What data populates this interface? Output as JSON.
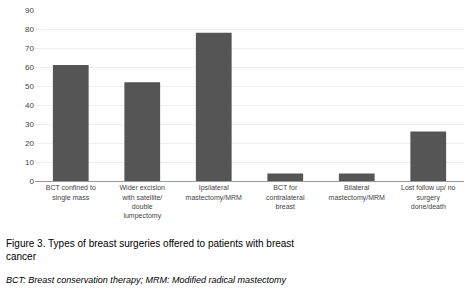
{
  "chart_data": {
    "type": "bar",
    "categories": [
      "BCT confined to\nsingle mass",
      "Wider excision\nwith satellite/\ndouble\nlumpectomy",
      "Ipsilateral\nmastectomy/MRM",
      "BCT for\ncontralateral\nbreast",
      "Bilateral\nmastectomy/MRM",
      "Lost follow up/ no\nsurgery\ndone/death"
    ],
    "values": [
      61,
      52,
      78,
      4,
      4,
      26
    ],
    "color": "#555555",
    "ylim": [
      0,
      90
    ],
    "yticks": [
      0,
      10,
      20,
      30,
      40,
      50,
      60,
      70,
      80,
      90
    ],
    "grid": true,
    "annotations": [
      "Figure 3. Types of breast surgeries offered to patients with breast\ncancer",
      "BCT: Breast conservation therapy; MRM: Modified radical mastectomy"
    ]
  }
}
